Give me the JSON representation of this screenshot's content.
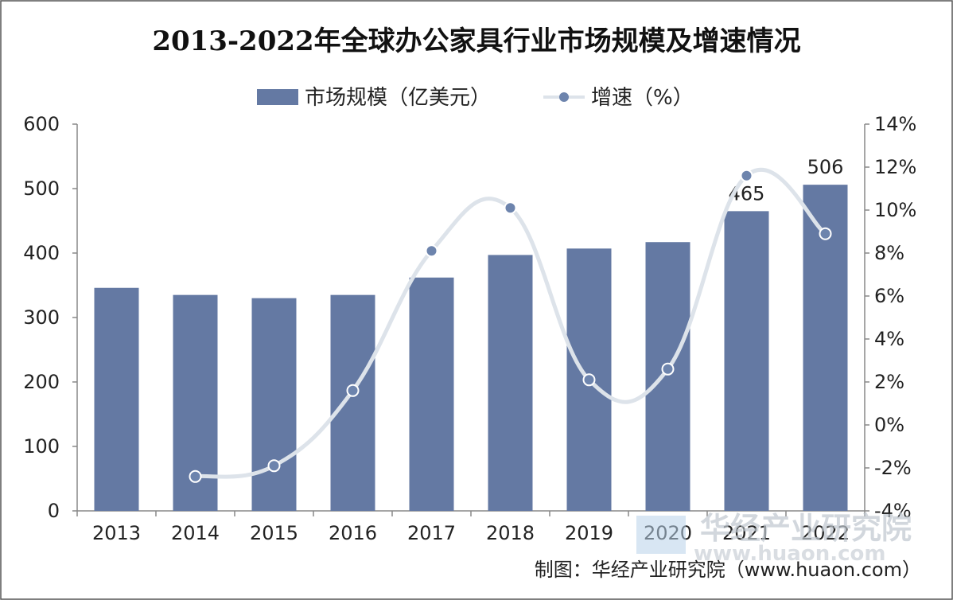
{
  "chart_data": {
    "type": "bar",
    "title": "2013-2022年全球办公家具行业市场规模及增速情况",
    "categories": [
      "2013",
      "2014",
      "2015",
      "2016",
      "2017",
      "2018",
      "2019",
      "2020",
      "2021",
      "2022"
    ],
    "series": [
      {
        "name": "市场规模（亿美元）",
        "type": "bar",
        "axis": "left",
        "color": "#6479a3",
        "values": [
          346,
          335,
          330,
          335,
          362,
          397,
          407,
          417,
          465,
          506
        ],
        "data_labels": {
          "2021": "465",
          "2022": "506"
        }
      },
      {
        "name": "增速（%）",
        "type": "line",
        "axis": "right",
        "color": "#6d84ad",
        "line_color": "#dde3ea",
        "values": [
          null,
          -2.4,
          -1.9,
          1.6,
          8.1,
          10.1,
          2.1,
          2.6,
          11.6,
          8.9
        ]
      }
    ],
    "y_left": {
      "ylim": [
        0,
        600
      ],
      "ticks": [
        "0",
        "100",
        "200",
        "300",
        "400",
        "500",
        "600"
      ]
    },
    "y_right": {
      "ylim": [
        -4,
        14
      ],
      "ticks": [
        "-4%",
        "-2%",
        "0%",
        "2%",
        "4%",
        "6%",
        "8%",
        "10%",
        "12%",
        "14%"
      ]
    },
    "legend_position": "top-center",
    "grid": false
  },
  "source": "制图：华经产业研究院（www.huaon.com）",
  "watermark": {
    "text": "华经产业研究院",
    "url": "www.huaon.com"
  },
  "colors": {
    "frame": "#555555",
    "axis": "#888888"
  }
}
